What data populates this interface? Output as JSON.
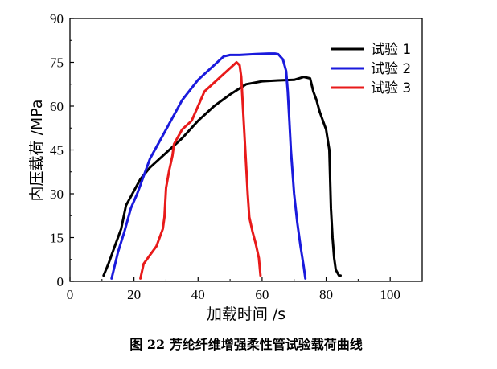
{
  "chart_data": {
    "type": "line",
    "caption": "图 22 芳纶纤维增强柔性管试验载荷曲线",
    "xlabel": "加载时间 /s",
    "ylabel": "内压载荷 /MPa",
    "xlim": [
      0,
      110
    ],
    "ylim": [
      0,
      90
    ],
    "xticks": [
      "0",
      "20",
      "40",
      "60",
      "80",
      "100"
    ],
    "yticks": [
      "0",
      "15",
      "30",
      "45",
      "60",
      "75",
      "90"
    ],
    "legend_position": "top-right",
    "grid": false,
    "series": [
      {
        "name": "试验 1",
        "color": "#000000",
        "x": [
          10.5,
          12,
          14,
          16,
          17.5,
          18.5,
          20,
          22,
          25,
          30,
          35,
          40,
          45,
          50,
          55,
          60,
          65,
          70,
          73,
          75,
          76,
          77,
          78,
          80,
          81,
          81.5,
          82,
          82.5,
          83,
          83.5,
          84,
          84.5
        ],
        "y": [
          2,
          6,
          12,
          18,
          26,
          28,
          31,
          35,
          39,
          44,
          49,
          55,
          60,
          64,
          67.5,
          68.5,
          68.8,
          69,
          70,
          69.5,
          65,
          62,
          58,
          52,
          45,
          25,
          15,
          8,
          4,
          3,
          2,
          2
        ]
      },
      {
        "name": "试验 2",
        "color": "#1a1adc",
        "x": [
          13,
          15,
          17,
          19,
          21,
          22,
          25,
          30,
          35,
          40,
          45,
          48,
          50,
          53,
          58,
          62,
          64,
          65,
          66.5,
          67.5,
          68,
          68.5,
          69,
          70,
          71,
          72,
          73,
          73.5
        ],
        "y": [
          1,
          10,
          17,
          25,
          30,
          33,
          42,
          52,
          62,
          69,
          74,
          77,
          77.5,
          77.5,
          77.8,
          78,
          78,
          77.8,
          76,
          72,
          65,
          55,
          45,
          30,
          20,
          12,
          5,
          1
        ]
      },
      {
        "name": "试验 3",
        "color": "#e81a1a",
        "x": [
          22,
          23,
          25,
          27,
          29,
          29.5,
          30,
          31,
          32,
          32.5,
          35,
          38,
          40,
          42,
          45,
          48,
          50,
          52,
          53,
          53.5,
          54,
          54.5,
          55,
          55.5,
          56,
          57,
          58,
          59,
          59.5
        ],
        "y": [
          1,
          6,
          9,
          12,
          18,
          22,
          32,
          38,
          43,
          47,
          52,
          55,
          60,
          65,
          68,
          71,
          73,
          75,
          74,
          70,
          60,
          50,
          40,
          30,
          22,
          17,
          13,
          8,
          2
        ]
      }
    ]
  }
}
